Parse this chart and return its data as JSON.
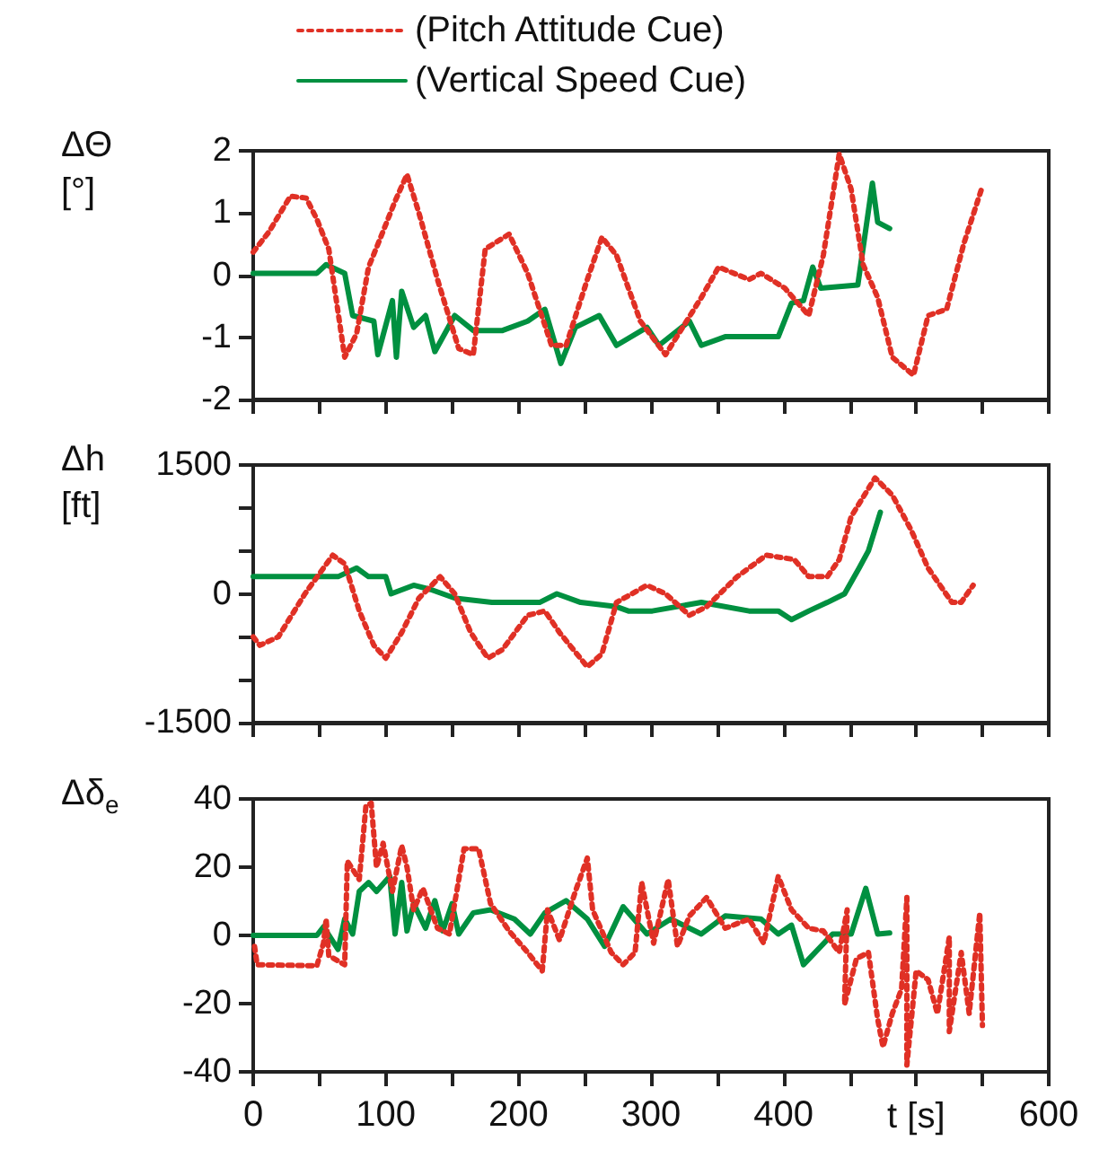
{
  "chart_data": [
    {
      "type": "line",
      "ylabel": "ΔΘ\n[°]",
      "legend": "top",
      "marker": "none",
      "grid": false,
      "tick_labels": "y",
      "xlim": [
        0,
        600
      ],
      "xticks": [
        {
          "value": 0,
          "label": null
        },
        {
          "value": 50,
          "label": null
        },
        {
          "value": 100,
          "label": null
        },
        {
          "value": 150,
          "label": null
        },
        {
          "value": 200,
          "label": null
        },
        {
          "value": 250,
          "label": null
        },
        {
          "value": 300,
          "label": null
        },
        {
          "value": 350,
          "label": null
        },
        {
          "value": 400,
          "label": null
        },
        {
          "value": 450,
          "label": null
        },
        {
          "value": 500,
          "label": null
        },
        {
          "value": 550,
          "label": null
        },
        {
          "value": 600,
          "label": null
        }
      ],
      "ylim": [
        -2,
        2
      ],
      "yticks": [
        -2,
        -1,
        0,
        1,
        2
      ],
      "series": [
        {
          "name": "(Pitch Attitude Cue)",
          "color": "#e03025",
          "line_style": "dotted",
          "x": [
            0,
            12,
            28,
            40,
            48,
            57,
            69,
            78,
            87,
            96,
            107,
            116,
            125,
            139,
            155,
            166,
            175,
            193,
            207,
            225,
            236,
            252,
            263,
            274,
            292,
            311,
            338,
            351,
            374,
            383,
            401,
            419,
            430,
            442,
            451,
            460,
            471,
            482,
            498,
            509,
            523,
            536,
            550
          ],
          "values": [
            0.37,
            0.7,
            1.27,
            1.24,
            0.9,
            0.42,
            -1.32,
            -0.94,
            0.13,
            0.6,
            1.19,
            1.62,
            1.0,
            -0.07,
            -1.18,
            -1.28,
            0.42,
            0.66,
            0.03,
            -1.13,
            -1.13,
            -0.07,
            0.61,
            0.32,
            -0.74,
            -1.28,
            -0.36,
            0.13,
            -0.07,
            0.03,
            -0.21,
            -0.65,
            0.32,
            1.95,
            1.38,
            0.17,
            -0.36,
            -1.32,
            -1.61,
            -0.65,
            -0.55,
            0.51,
            1.43
          ]
        },
        {
          "name": "(Vertical Speed Cue)",
          "color": "#009040",
          "line_style": "solid",
          "x": [
            0,
            48,
            55,
            69,
            75,
            91,
            94,
            105,
            108,
            112,
            121,
            130,
            137,
            152,
            166,
            188,
            207,
            220,
            232,
            243,
            261,
            274,
            297,
            306,
            329,
            338,
            356,
            383,
            396,
            406,
            415,
            422,
            428,
            456,
            467,
            471,
            480
          ],
          "values": [
            0.03,
            0.03,
            0.17,
            0.03,
            -0.65,
            -0.74,
            -1.28,
            -0.41,
            -1.32,
            -0.26,
            -0.84,
            -0.65,
            -1.23,
            -0.65,
            -0.89,
            -0.89,
            -0.74,
            -0.55,
            -1.42,
            -0.84,
            -0.65,
            -1.13,
            -0.84,
            -1.13,
            -0.74,
            -1.13,
            -0.99,
            -0.99,
            -0.99,
            -0.45,
            -0.41,
            0.13,
            -0.21,
            -0.16,
            1.48,
            0.85,
            0.75
          ]
        }
      ]
    },
    {
      "type": "line",
      "ylabel": "Δh\n[ft]",
      "marker": "none",
      "grid": false,
      "tick_labels": "y",
      "xlim": [
        0,
        600
      ],
      "xticks": [
        {
          "value": 0,
          "label": null
        },
        {
          "value": 50,
          "label": null
        },
        {
          "value": 100,
          "label": null
        },
        {
          "value": 150,
          "label": null
        },
        {
          "value": 200,
          "label": null
        },
        {
          "value": 250,
          "label": null
        },
        {
          "value": 300,
          "label": null
        },
        {
          "value": 350,
          "label": null
        },
        {
          "value": 400,
          "label": null
        },
        {
          "value": 450,
          "label": null
        },
        {
          "value": 500,
          "label": null
        },
        {
          "value": 550,
          "label": null
        },
        {
          "value": 600,
          "label": null
        }
      ],
      "ylim": [
        -1500,
        1500
      ],
      "yticks": [
        -1500,
        {
          "value": -1000,
          "label": null
        },
        {
          "value": -500,
          "label": null
        },
        0,
        {
          "value": 500,
          "label": null
        },
        {
          "value": 1000,
          "label": null
        },
        1500
      ],
      "series": [
        {
          "color": "#e03025",
          "line_style": "dotted",
          "x": [
            0,
            5,
            19,
            39,
            60,
            69,
            80,
            91,
            100,
            112,
            125,
            141,
            152,
            164,
            177,
            188,
            207,
            220,
            231,
            252,
            263,
            274,
            297,
            311,
            329,
            342,
            365,
            387,
            408,
            419,
            433,
            442,
            451,
            469,
            482,
            496,
            509,
            527,
            534,
            543
          ],
          "values": [
            -500,
            -600,
            -500,
            0,
            450,
            350,
            -200,
            -600,
            -750,
            -450,
            -50,
            200,
            0,
            -450,
            -750,
            -650,
            -250,
            -200,
            -450,
            -850,
            -700,
            -100,
            100,
            0,
            -250,
            -150,
            200,
            450,
            400,
            200,
            200,
            400,
            900,
            1350,
            1150,
            750,
            300,
            -100,
            -100,
            100
          ]
        },
        {
          "color": "#009040",
          "line_style": "solid",
          "x": [
            0,
            44,
            64,
            78,
            87,
            100,
            104,
            121,
            134,
            152,
            180,
            202,
            216,
            229,
            247,
            274,
            283,
            301,
            338,
            374,
            396,
            406,
            419,
            433,
            446,
            457,
            464,
            473
          ],
          "values": [
            200,
            200,
            200,
            300,
            200,
            200,
            0,
            100,
            50,
            -50,
            -100,
            -100,
            -100,
            0,
            -100,
            -150,
            -200,
            -200,
            -100,
            -200,
            -200,
            -300,
            -200,
            -100,
            0,
            300,
            500,
            950
          ]
        }
      ]
    },
    {
      "type": "line",
      "ylabel": "Δδ$_{e}$",
      "xlabel": "t [s]",
      "marker": "none",
      "grid": false,
      "xlim": [
        0,
        600
      ],
      "xticks": [
        0,
        {
          "value": 50,
          "label": null
        },
        100,
        {
          "value": 150,
          "label": null
        },
        200,
        {
          "value": 250,
          "label": null
        },
        300,
        {
          "value": 350,
          "label": null
        },
        400,
        {
          "value": 450,
          "label": null
        },
        {
          "value": 500,
          "label": null
        },
        {
          "value": 550,
          "label": null
        },
        600
      ],
      "ylim": [
        -40,
        40
      ],
      "yticks": [
        -40,
        -20,
        0,
        20,
        40
      ],
      "series": [
        {
          "color": "#e03025",
          "line_style": "dotted",
          "x": [
            1,
            3,
            48,
            53,
            55,
            57,
            69,
            71,
            80,
            85,
            89,
            93,
            98,
            105,
            112,
            116,
            121,
            128,
            139,
            148,
            159,
            170,
            179,
            193,
            207,
            218,
            222,
            231,
            243,
            252,
            256,
            270,
            279,
            288,
            293,
            302,
            313,
            320,
            329,
            342,
            356,
            374,
            385,
            396,
            406,
            419,
            430,
            442,
            448,
            446,
            455,
            464,
            471,
            475,
            482,
            489,
            493,
            493,
            500,
            509,
            516,
            525,
            525,
            534,
            540,
            548,
            550
          ],
          "values": [
            -3.2,
            -8.6,
            -8.9,
            -2.3,
            4.8,
            -5.9,
            -8.6,
            21.8,
            16.4,
            37.9,
            38.8,
            20,
            27,
            12.9,
            26.3,
            20,
            7.5,
            13.8,
            2.1,
            0.4,
            25.4,
            25.4,
            9.3,
            1.3,
            -5,
            -10.4,
            7.5,
            -1.4,
            12.9,
            22.7,
            7.5,
            -5,
            -8.6,
            -5,
            15.5,
            -2.3,
            16.4,
            -3.2,
            5.7,
            11.1,
            2.1,
            4.8,
            -2.3,
            17.3,
            7.5,
            2.1,
            1.3,
            -5,
            7.5,
            -20.2,
            -6.8,
            -5,
            -24.6,
            -32.7,
            -22.9,
            -15.7,
            11.1,
            -38,
            -10.4,
            -13,
            -22.9,
            -0.5,
            -28.2,
            -5,
            -22.9,
            6.6,
            -26.4
          ]
        },
        {
          "color": "#009040",
          "line_style": "solid",
          "x": [
            0,
            48,
            53,
            64,
            69,
            75,
            80,
            87,
            93,
            103,
            107,
            112,
            116,
            121,
            130,
            137,
            143,
            150,
            155,
            166,
            179,
            197,
            209,
            220,
            236,
            252,
            265,
            279,
            297,
            315,
            338,
            356,
            383,
            396,
            406,
            415,
            437,
            451,
            462,
            471,
            480
          ],
          "values": [
            0,
            0,
            2.5,
            -4.1,
            4.8,
            0.4,
            12.9,
            15.5,
            12.9,
            17.3,
            0.4,
            15.5,
            1.3,
            9.3,
            2.1,
            10.2,
            1.3,
            9.3,
            0.4,
            6.6,
            7.5,
            4.8,
            0.4,
            6.6,
            10.2,
            4.8,
            -3.2,
            8.4,
            0.4,
            4.8,
            0.4,
            5.7,
            4.8,
            0.4,
            3,
            -8.6,
            0.4,
            0.4,
            13.8,
            0.4,
            0.7
          ]
        }
      ]
    }
  ]
}
